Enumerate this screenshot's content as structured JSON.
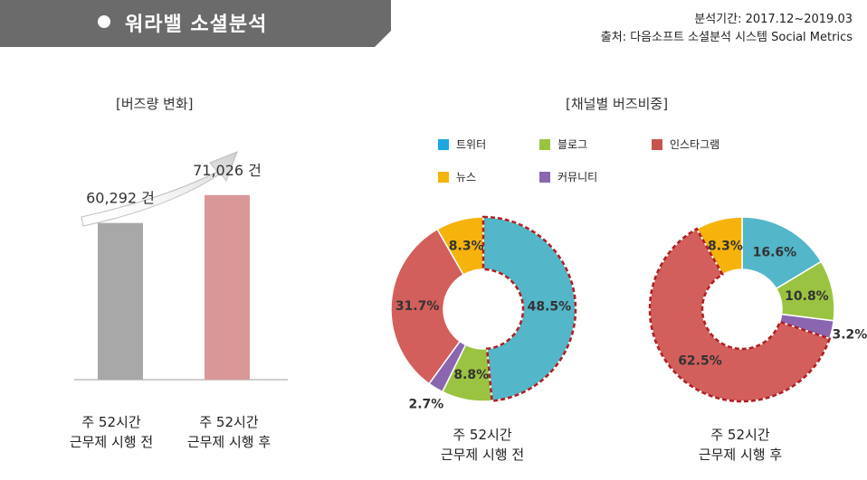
{
  "header": {
    "title": "워라밸 소셜분석",
    "period": "분석기간: 2017.12~2019.03",
    "source": "출처: 다음소프트 소셜분석 시스템 Social Metrics",
    "bar_color": "#6b6b6b"
  },
  "left": {
    "section_title": "[버즈량 변화]"
  },
  "right": {
    "section_title": "[채널별 버즈비중]"
  },
  "chart_data": [
    {
      "type": "bar",
      "title": "[버즈량 변화]",
      "categories": [
        "주 52시간\n근무제 시행 전",
        "주 52시간\n근무제 시행 후"
      ],
      "values": [
        60292,
        71026
      ],
      "value_labels": [
        "60,292 건",
        "71,026 건"
      ],
      "colors": [
        "#a8a8a8",
        "#da9797"
      ],
      "ylim": [
        0,
        80000
      ],
      "grid": false
    },
    {
      "type": "pie",
      "title": "[채널별 버즈비중]",
      "caption": "주 52시간\n근무제 시행 전",
      "categories": [
        "트위터",
        "블로그",
        "커뮤니티",
        "인스타그램",
        "뉴스"
      ],
      "values": [
        48.5,
        8.8,
        2.7,
        31.7,
        8.3
      ],
      "labels": [
        "48.5%",
        "8.8%",
        "2.7%",
        "31.7%",
        "8.3%"
      ],
      "colors": [
        "#53b6c9",
        "#9ac341",
        "#8a66b0",
        "#d25f5c",
        "#f5b30b"
      ],
      "highlight": "트위터"
    },
    {
      "type": "pie",
      "title": "[채널별 버즈비중]",
      "caption": "주 52시간\n근무제 시행 후",
      "categories": [
        "트위터",
        "블로그",
        "커뮤니티",
        "인스타그램",
        "뉴스"
      ],
      "values": [
        16.6,
        10.8,
        3.2,
        62.5,
        8.3
      ],
      "labels": [
        "16.6%",
        "10.8%",
        "3.2%",
        "62.5%",
        "8.3%"
      ],
      "colors": [
        "#53b6c9",
        "#9ac341",
        "#8a66b0",
        "#d25f5c",
        "#f5b30b"
      ],
      "highlight": "인스타그램"
    }
  ],
  "legend": [
    {
      "label": "트위터",
      "color": "#1ea7e0"
    },
    {
      "label": "블로그",
      "color": "#9ac341"
    },
    {
      "label": "인스타그램",
      "color": "#c9514e"
    },
    {
      "label": "뉴스",
      "color": "#f5b30b"
    },
    {
      "label": "커뮤니티",
      "color": "#8a66b0"
    }
  ]
}
